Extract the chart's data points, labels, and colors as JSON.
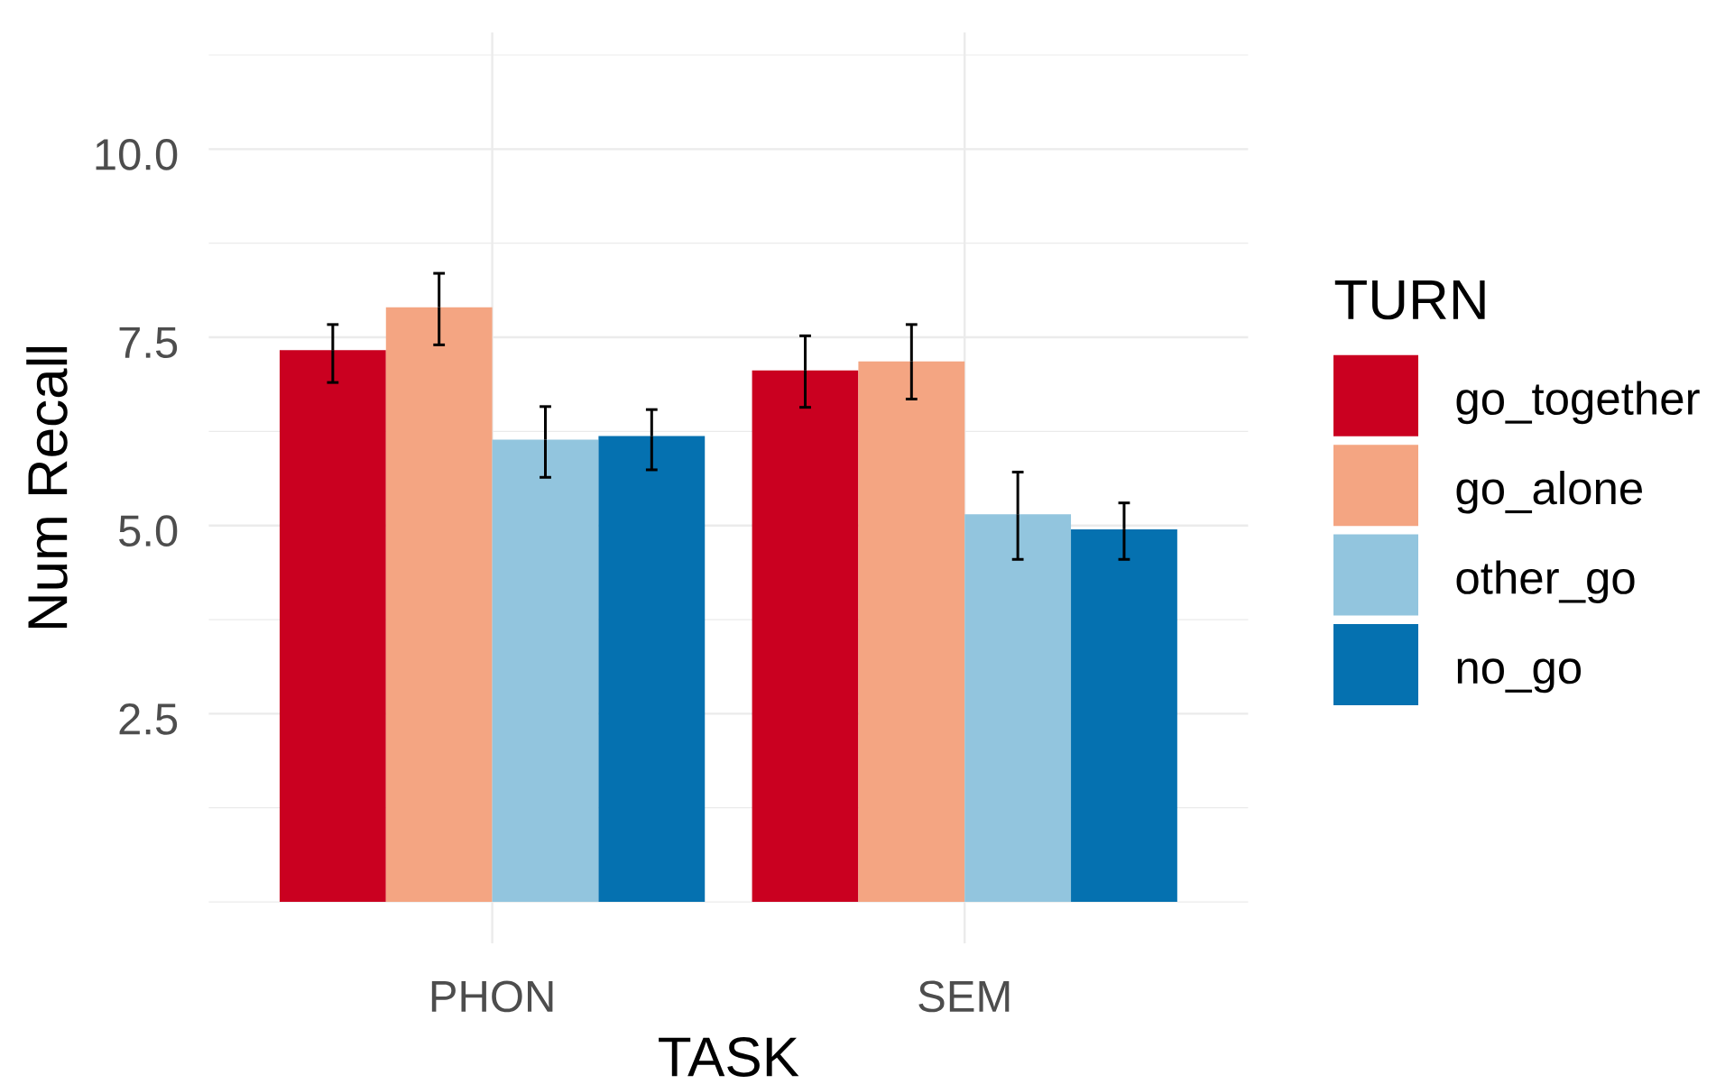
{
  "chart_data": {
    "type": "bar",
    "categories": [
      "PHON",
      "SEM"
    ],
    "series": [
      {
        "name": "go_together",
        "color": "#ca0020",
        "values": [
          7.33,
          7.06
        ],
        "errors": [
          [
            6.9,
            7.67
          ],
          [
            6.57,
            7.52
          ]
        ]
      },
      {
        "name": "go_alone",
        "color": "#f4a582",
        "values": [
          7.9,
          7.18
        ],
        "errors": [
          [
            7.4,
            8.35
          ],
          [
            6.68,
            7.67
          ]
        ]
      },
      {
        "name": "other_go",
        "color": "#92c5de",
        "values": [
          6.14,
          5.15
        ],
        "errors": [
          [
            5.64,
            6.58
          ],
          [
            4.55,
            5.71
          ]
        ]
      },
      {
        "name": "no_go",
        "color": "#0571b0",
        "values": [
          6.19,
          4.95
        ],
        "errors": [
          [
            5.74,
            6.54
          ],
          [
            4.55,
            5.3
          ]
        ]
      }
    ],
    "xlabel": "TASK",
    "ylabel": "Num Recall",
    "legend_title": "TURN",
    "ylim": [
      -0.55,
      11.55
    ],
    "yticks": [
      2.5,
      {
        "value": 5,
        "label": "5.0"
      },
      7.5,
      {
        "value": 10,
        "label": "10.0"
      }
    ],
    "grid": true,
    "legend": "right"
  }
}
